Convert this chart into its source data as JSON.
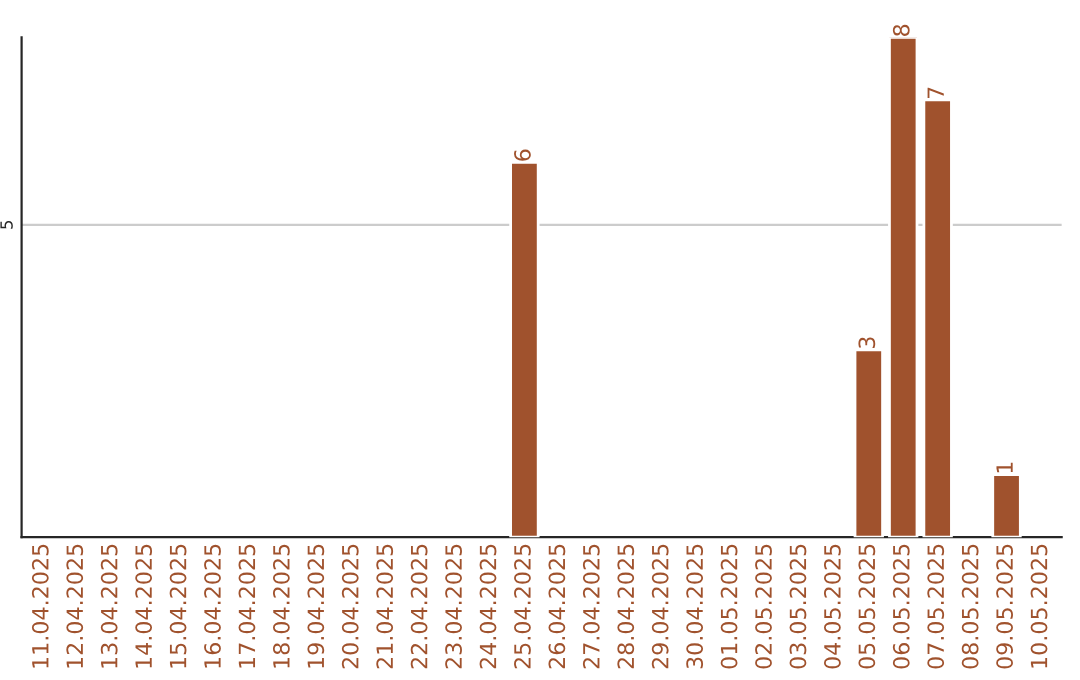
{
  "chart_data": {
    "type": "bar",
    "categories": [
      "11.04.2025",
      "12.04.2025",
      "13.04.2025",
      "14.04.2025",
      "15.04.2025",
      "16.04.2025",
      "17.04.2025",
      "18.04.2025",
      "19.04.2025",
      "20.04.2025",
      "21.04.2025",
      "22.04.2025",
      "23.04.2025",
      "24.04.2025",
      "25.04.2025",
      "26.04.2025",
      "27.04.2025",
      "28.04.2025",
      "29.04.2025",
      "30.04.2025",
      "01.05.2025",
      "02.05.2025",
      "03.05.2025",
      "04.05.2025",
      "05.05.2025",
      "06.05.2025",
      "07.05.2025",
      "08.05.2025",
      "09.05.2025",
      "10.05.2025"
    ],
    "values": [
      null,
      null,
      null,
      null,
      null,
      null,
      null,
      null,
      null,
      null,
      null,
      null,
      null,
      null,
      6,
      null,
      null,
      null,
      null,
      null,
      null,
      null,
      null,
      null,
      3,
      8,
      7,
      null,
      1,
      null
    ],
    "color": "#a0522d",
    "ylim": [
      0,
      8
    ],
    "yticks": [
      5
    ],
    "grid": "y",
    "data_labels": true
  }
}
